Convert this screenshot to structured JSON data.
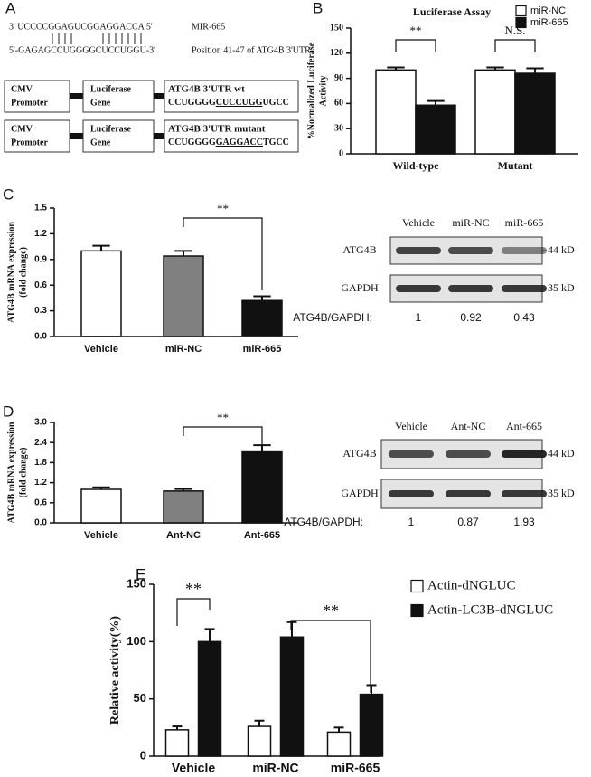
{
  "panel_labels": [
    "A",
    "B",
    "C",
    "D",
    "E"
  ],
  "construct": {
    "mirna_seq": "3'  UCCCCGGAGUCGGAGGACCA  5'",
    "mirna_name": "MIR-665",
    "target_seq": "5'-GAGAGCCUGGGGCUCCUGGU-3'",
    "target_name": "Position 41-47 of ATG4B  3'UTR",
    "promoter": [
      "CMV",
      "Promoter"
    ],
    "gene": [
      "Luciferase",
      "Gene"
    ],
    "wt": {
      "title": "ATG4B 3'UTR wt",
      "seq": [
        "CCUGGGG",
        "CUCCUGG",
        "UGCC"
      ]
    },
    "mutant": {
      "title": "ATG4B 3'UTR mutant",
      "seq": [
        "CCUGGGG",
        "GAGGACC",
        "TGCC"
      ]
    }
  },
  "blots": [
    {
      "lanes": [
        "Vehicle",
        "miR-NC",
        "miR-665"
      ],
      "rows": [
        "ATG4B",
        "GAPDH"
      ],
      "sizes": [
        "44 kD",
        "35 kD"
      ],
      "ratio_label": "ATG4B/GAPDH:",
      "ratios": [
        1,
        0.92,
        0.43
      ]
    },
    {
      "lanes": [
        "Vehicle",
        "Ant-NC",
        "Ant-665"
      ],
      "rows": [
        "ATG4B",
        "GAPDH"
      ],
      "sizes": [
        "44 kD",
        "35 kD"
      ],
      "ratio_label": "ATG4B/GAPDH:",
      "ratios": [
        1,
        0.87,
        1.93
      ]
    }
  ],
  "chart_data": [
    {
      "type": "bar",
      "title": "Luciferase Assay",
      "ylabel": [
        "%Normalized Luciferase",
        "Activity"
      ],
      "categories": [
        "Wild-type",
        "Mutant"
      ],
      "series": [
        {
          "name": "miR-NC",
          "color": "#ffffff",
          "values": [
            100,
            100
          ],
          "errors": [
            3,
            3
          ]
        },
        {
          "name": "miR-665",
          "color": "#111111",
          "values": [
            58,
            96
          ],
          "errors": [
            5,
            6
          ]
        }
      ],
      "ylim": [
        0,
        150
      ],
      "yticks": [
        0,
        30,
        60,
        90,
        120,
        150
      ],
      "annotations": [
        "**",
        "N.S."
      ],
      "legend": "upper right"
    },
    {
      "type": "bar",
      "ylabel": [
        "ATG4B mRNA expression",
        "(fold change)"
      ],
      "categories": [
        "Vehicle",
        "miR-NC",
        "miR-665"
      ],
      "values": [
        1.0,
        0.94,
        0.42
      ],
      "errors": [
        0.06,
        0.06,
        0.05
      ],
      "colors": [
        "#ffffff",
        "#808080",
        "#111111"
      ],
      "ylim": [
        0,
        1.5
      ],
      "yticks": [
        {
          "value": 0,
          "label": "0.0"
        },
        0.3,
        0.6,
        0.9,
        1.2,
        1.5
      ],
      "annotations": [
        "**"
      ]
    },
    {
      "type": "bar",
      "ylabel": [
        "ATG4B mRNA expression",
        "(fold change)"
      ],
      "categories": [
        "Vehicle",
        "Ant-NC",
        "Ant-665"
      ],
      "values": [
        1.0,
        0.95,
        2.12
      ],
      "errors": [
        0.06,
        0.06,
        0.2
      ],
      "colors": [
        "#ffffff",
        "#808080",
        "#111111"
      ],
      "ylim": [
        0,
        3
      ],
      "yticks": [
        {
          "value": 0,
          "label": "0.0"
        },
        0.6,
        1.2,
        1.8,
        2.4,
        {
          "value": 3,
          "label": "3.0"
        }
      ],
      "annotations": [
        "**"
      ]
    },
    {
      "type": "bar",
      "ylabel": [
        "Relative activity(%)"
      ],
      "categories": [
        "Vehicle",
        "miR-NC",
        "miR-665"
      ],
      "series": [
        {
          "name": "Actin-dNGLUC",
          "color": "#ffffff",
          "values": [
            23,
            26,
            21
          ],
          "errors": [
            3,
            5,
            4
          ]
        },
        {
          "name": "Actin-LC3B-dNGLUC",
          "color": "#111111",
          "values": [
            100,
            104,
            54
          ],
          "errors": [
            11,
            13,
            8
          ]
        }
      ],
      "ylim": [
        0,
        150
      ],
      "yticks": [
        0,
        50,
        100,
        150
      ],
      "annotations": [
        "**",
        "**"
      ],
      "legend": "upper right"
    }
  ]
}
